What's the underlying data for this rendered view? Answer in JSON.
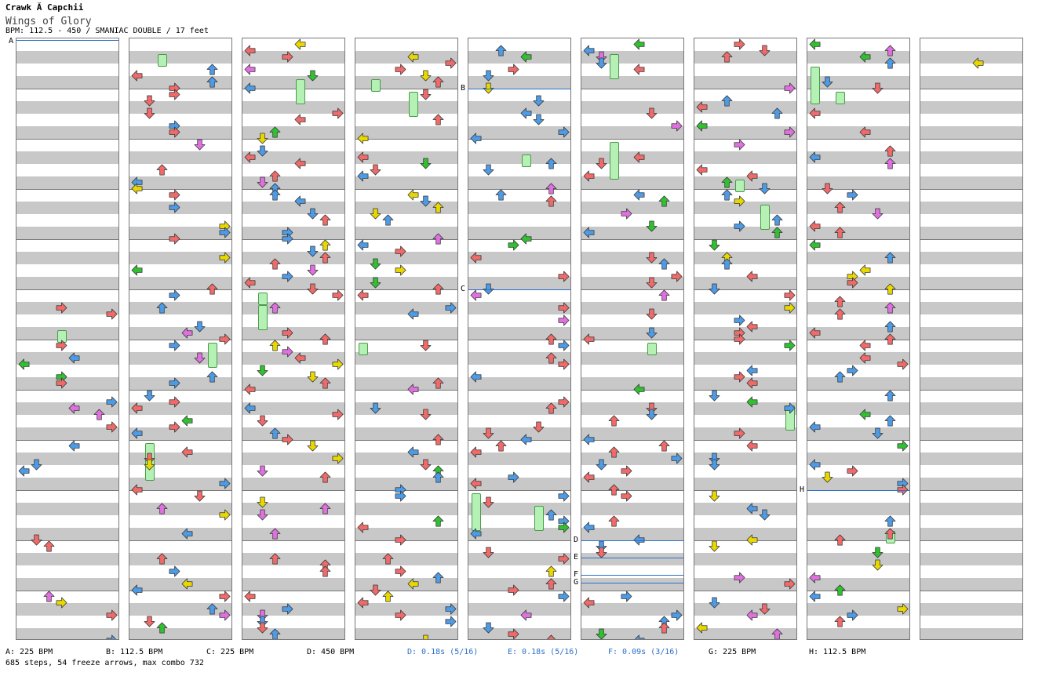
{
  "header": {
    "artist": "Crawk Ă  Capchii",
    "song": "Wings of Glory",
    "meta": "BPM: 112.5 - 450 / SMANIAC DOUBLE / 17 feet"
  },
  "colors": {
    "red": "#f06a6a",
    "blue": "#4d9be6",
    "pink": "#e070e0",
    "yellow": "#e8d800",
    "green": "#30c030",
    "freeze": "#b5f0b5"
  },
  "markers": [
    {
      "label": "A",
      "col": 0
    },
    {
      "label": "B",
      "col": 4
    },
    {
      "label": "C",
      "col": 4
    },
    {
      "label": "D",
      "col": 5
    },
    {
      "label": "E",
      "col": 5
    },
    {
      "label": "F",
      "col": 5
    },
    {
      "label": "G",
      "col": 5
    },
    {
      "label": "H",
      "col": 7
    }
  ],
  "legend": [
    {
      "text": "A: 225 BPM",
      "kind": "bpm"
    },
    {
      "text": "B: 112.5 BPM",
      "kind": "bpm"
    },
    {
      "text": "C: 225 BPM",
      "kind": "bpm"
    },
    {
      "text": "D: 450 BPM",
      "kind": "bpm"
    },
    {
      "text": "D: 0.18s (5/16)",
      "kind": "stop"
    },
    {
      "text": "E: 0.18s (5/16)",
      "kind": "stop"
    },
    {
      "text": "F: 0.09s (3/16)",
      "kind": "stop"
    },
    {
      "text": "G: 225 BPM",
      "kind": "bpm"
    },
    {
      "text": "H: 112.5 BPM",
      "kind": "bpm"
    }
  ],
  "summary": "685 steps, 54 freeze arrows, max combo 732"
}
